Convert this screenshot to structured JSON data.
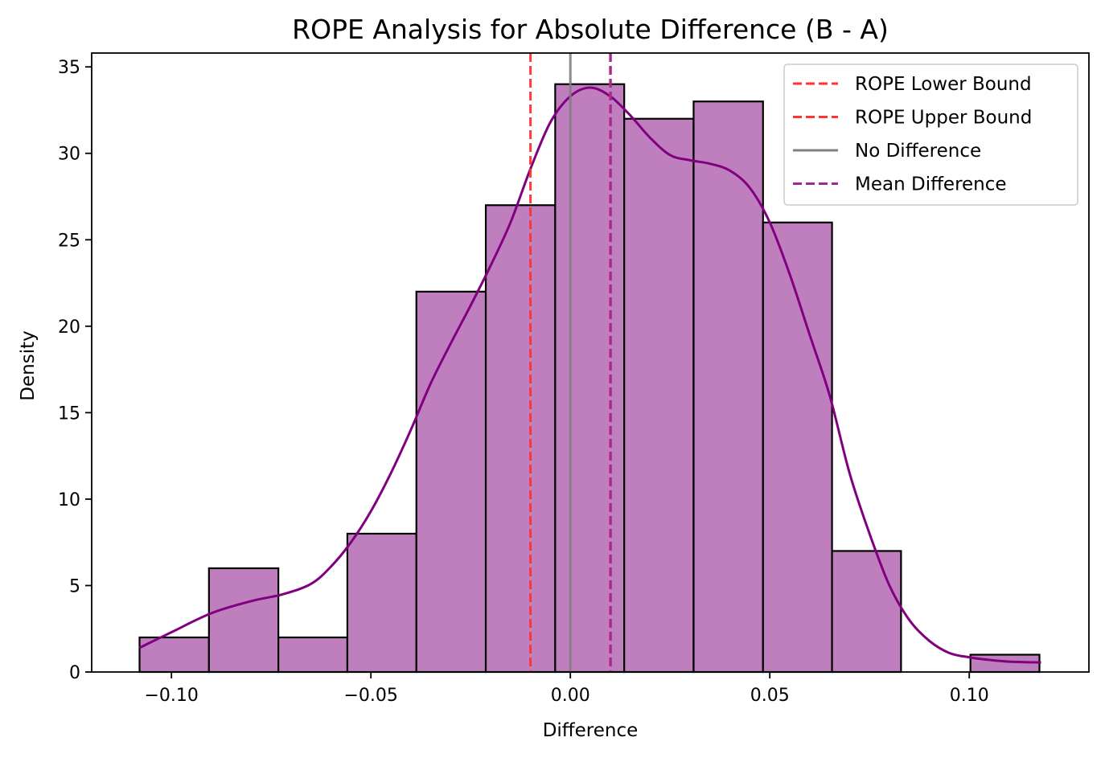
{
  "chart_data": {
    "type": "histogram",
    "title": "ROPE Analysis for Absolute Difference (B - A)",
    "xlabel": "Difference",
    "ylabel": "Density",
    "xlim": [
      -0.12,
      0.13
    ],
    "ylim": [
      0,
      35.8
    ],
    "xticks": [
      -0.1,
      -0.05,
      0.0,
      0.05,
      0.1
    ],
    "xtick_labels": [
      "−0.10",
      "−0.05",
      "0.00",
      "0.05",
      "0.10"
    ],
    "yticks": [
      0,
      5,
      10,
      15,
      20,
      25,
      30,
      35
    ],
    "ytick_labels": [
      "0",
      "5",
      "10",
      "15",
      "20",
      "25",
      "30",
      "35"
    ],
    "grid": false,
    "bins": [
      {
        "x0": -0.108,
        "x1": -0.0906,
        "value": 2
      },
      {
        "x0": -0.0906,
        "x1": -0.0732,
        "value": 6
      },
      {
        "x0": -0.0732,
        "x1": -0.0559,
        "value": 2
      },
      {
        "x0": -0.0559,
        "x1": -0.0386,
        "value": 8
      },
      {
        "x0": -0.0386,
        "x1": -0.0212,
        "value": 22
      },
      {
        "x0": -0.0212,
        "x1": -0.0038,
        "value": 27
      },
      {
        "x0": -0.0038,
        "x1": 0.0135,
        "value": 34
      },
      {
        "x0": 0.0135,
        "x1": 0.0309,
        "value": 32
      },
      {
        "x0": 0.0309,
        "x1": 0.0483,
        "value": 33
      },
      {
        "x0": 0.0483,
        "x1": 0.0656,
        "value": 26
      },
      {
        "x0": 0.0656,
        "x1": 0.0829,
        "value": 7
      },
      {
        "x0": 0.0829,
        "x1": 0.1003,
        "value": 0
      },
      {
        "x0": 0.1003,
        "x1": 0.1176,
        "value": 1
      }
    ],
    "bar_fill": "#bf7fbf",
    "bar_edge": "#000000",
    "kde": {
      "color": "#800080",
      "points": [
        [
          -0.108,
          1.4
        ],
        [
          -0.1,
          2.3
        ],
        [
          -0.09,
          3.4
        ],
        [
          -0.08,
          4.1
        ],
        [
          -0.072,
          4.5
        ],
        [
          -0.065,
          5.1
        ],
        [
          -0.06,
          6.1
        ],
        [
          -0.055,
          7.5
        ],
        [
          -0.05,
          9.3
        ],
        [
          -0.045,
          11.5
        ],
        [
          -0.04,
          14.0
        ],
        [
          -0.035,
          16.7
        ],
        [
          -0.03,
          19.0
        ],
        [
          -0.025,
          21.2
        ],
        [
          -0.02,
          23.5
        ],
        [
          -0.015,
          26.0
        ],
        [
          -0.01,
          29.1
        ],
        [
          -0.005,
          31.8
        ],
        [
          0.0,
          33.3
        ],
        [
          0.005,
          33.8
        ],
        [
          0.01,
          33.3
        ],
        [
          0.015,
          32.2
        ],
        [
          0.02,
          30.9
        ],
        [
          0.025,
          29.9
        ],
        [
          0.03,
          29.6
        ],
        [
          0.035,
          29.4
        ],
        [
          0.04,
          29.0
        ],
        [
          0.045,
          28.0
        ],
        [
          0.05,
          26.0
        ],
        [
          0.055,
          23.0
        ],
        [
          0.06,
          19.5
        ],
        [
          0.065,
          16.0
        ],
        [
          0.07,
          11.5
        ],
        [
          0.075,
          8.0
        ],
        [
          0.08,
          5.0
        ],
        [
          0.085,
          3.0
        ],
        [
          0.09,
          1.8
        ],
        [
          0.095,
          1.1
        ],
        [
          0.1,
          0.85
        ],
        [
          0.105,
          0.7
        ],
        [
          0.11,
          0.6
        ],
        [
          0.118,
          0.55
        ]
      ]
    },
    "vlines": [
      {
        "name": "ROPE Lower Bound",
        "x": -0.01,
        "color": "#ff3333",
        "style": "dashed"
      },
      {
        "name": "ROPE Upper Bound",
        "x": 0.01,
        "color": "#ff3333",
        "style": "dashed"
      },
      {
        "name": "No Difference",
        "x": 0.0,
        "color": "#808080",
        "style": "solid"
      },
      {
        "name": "Mean Difference",
        "x": 0.0101,
        "color": "#9c2a9c",
        "style": "dashed"
      }
    ],
    "legend_position": "upper right"
  }
}
